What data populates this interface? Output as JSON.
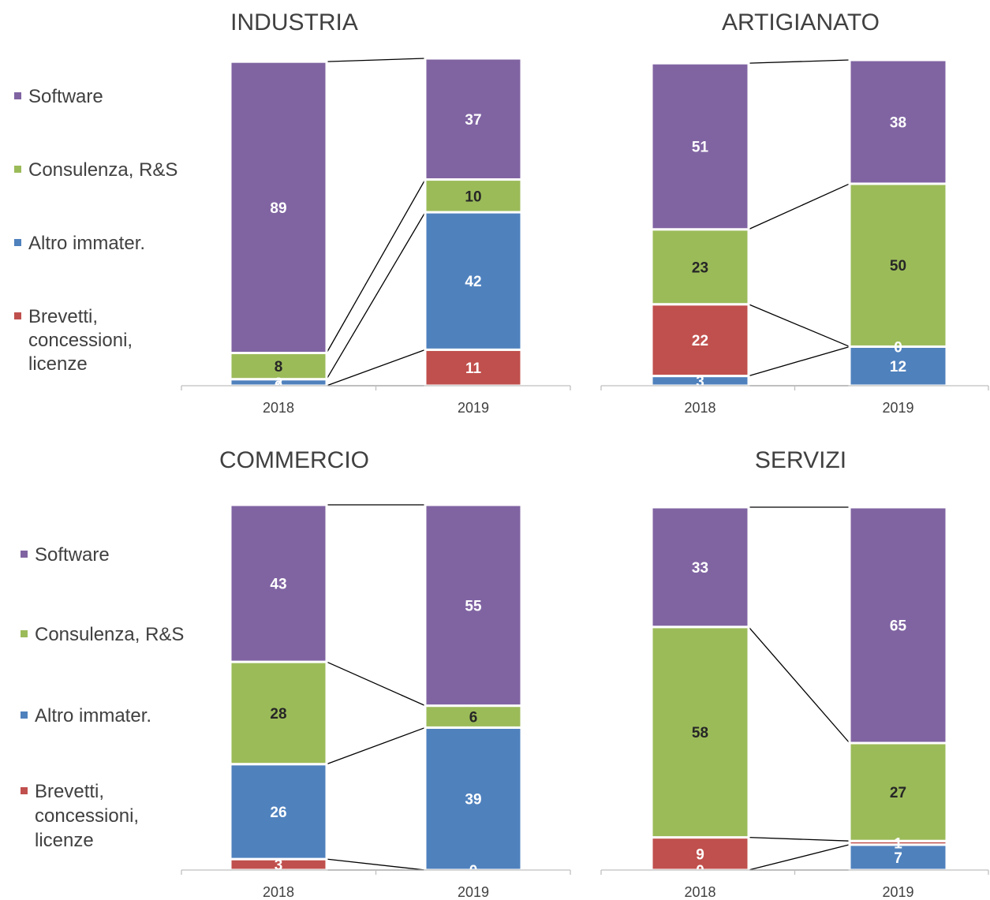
{
  "legend": {
    "items": [
      {
        "label": "Software",
        "color": "#8064A2"
      },
      {
        "label": "Consulenza, R&S",
        "color": "#9BBB59"
      },
      {
        "label": "Altro immater.",
        "color": "#4F81BD"
      },
      {
        "label": "Brevetti, concessioni, licenze",
        "label_lines": [
          "Brevetti,",
          "concessioni,",
          "licenze"
        ],
        "color": "#C0504D"
      }
    ]
  },
  "chart_data": [
    {
      "type": "bar",
      "stacked": true,
      "percent_stacked": true,
      "title": "INDUSTRIA",
      "categories": [
        "2018",
        "2019"
      ],
      "ylim": [
        0,
        100
      ],
      "series_lines": true,
      "series": [
        {
          "name": "Brevetti, concessioni, licenze",
          "values": [
            0,
            11
          ]
        },
        {
          "name": "Altro immater.",
          "values": [
            2,
            42
          ]
        },
        {
          "name": "Consulenza, R&S",
          "values": [
            8,
            10
          ]
        },
        {
          "name": "Software",
          "values": [
            89,
            37
          ]
        }
      ]
    },
    {
      "type": "bar",
      "stacked": true,
      "percent_stacked": true,
      "title": "ARTIGIANATO",
      "categories": [
        "2018",
        "2019"
      ],
      "ylim": [
        0,
        100
      ],
      "series_lines": true,
      "series": [
        {
          "name": "Altro immater.",
          "values": [
            3,
            12
          ]
        },
        {
          "name": "Brevetti, concessioni, licenze",
          "values": [
            22,
            0
          ]
        },
        {
          "name": "Consulenza, R&S",
          "values": [
            23,
            50
          ]
        },
        {
          "name": "Software",
          "values": [
            51,
            38
          ]
        }
      ]
    },
    {
      "type": "bar",
      "stacked": true,
      "percent_stacked": true,
      "title": "COMMERCIO",
      "categories": [
        "2018",
        "2019"
      ],
      "ylim": [
        0,
        100
      ],
      "series_lines": true,
      "series": [
        {
          "name": "Brevetti, concessioni, licenze",
          "values": [
            3,
            0
          ]
        },
        {
          "name": "Altro immater.",
          "values": [
            26,
            39
          ]
        },
        {
          "name": "Consulenza, R&S",
          "values": [
            28,
            6
          ]
        },
        {
          "name": "Software",
          "values": [
            43,
            55
          ]
        }
      ]
    },
    {
      "type": "bar",
      "stacked": true,
      "percent_stacked": true,
      "title": "SERVIZI",
      "categories": [
        "2018",
        "2019"
      ],
      "ylim": [
        0,
        100
      ],
      "series_lines": true,
      "series": [
        {
          "name": "Altro immater.",
          "values": [
            0,
            7
          ]
        },
        {
          "name": "Brevetti, concessioni, licenze",
          "values": [
            9,
            1
          ]
        },
        {
          "name": "Consulenza, R&S",
          "values": [
            58,
            27
          ]
        },
        {
          "name": "Software",
          "values": [
            33,
            65
          ]
        }
      ]
    }
  ]
}
